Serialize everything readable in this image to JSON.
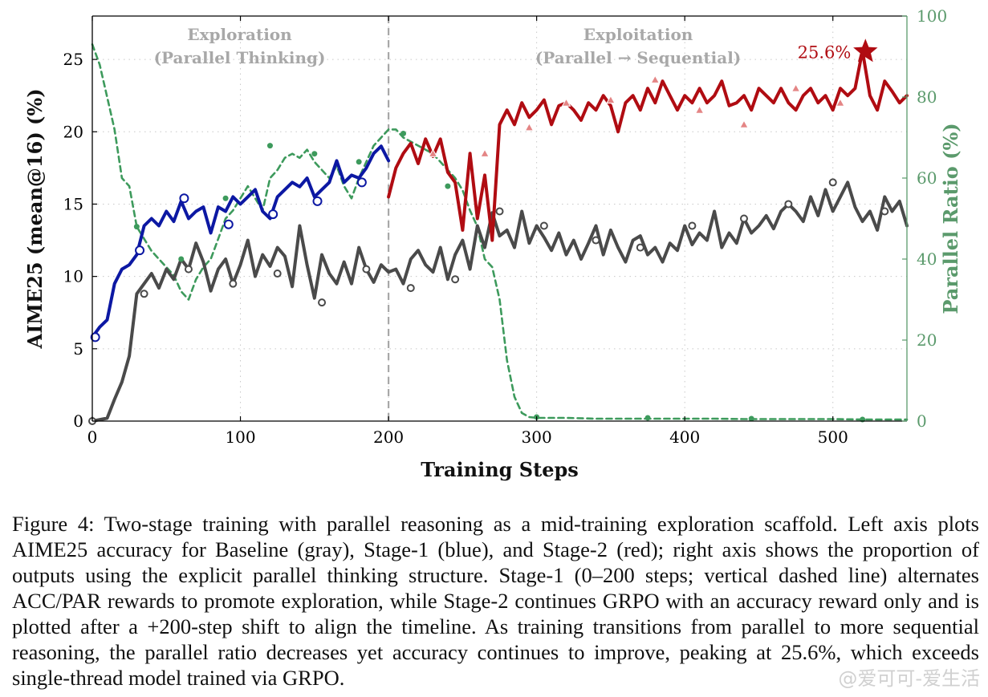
{
  "chart_data": {
    "type": "line",
    "xlabel": "Training Steps",
    "ylabel": "AIME25 (mean@16) (%)",
    "y2label": "Parallel Ratio (%)",
    "xlim": [
      0,
      550
    ],
    "ylim": [
      0,
      28
    ],
    "y2lim": [
      0,
      100
    ],
    "xticks": [
      0,
      100,
      200,
      300,
      400,
      500
    ],
    "yticks": [
      0,
      5,
      10,
      15,
      20,
      25
    ],
    "y2ticks": [
      0,
      20,
      40,
      60,
      80,
      100
    ],
    "grid": true,
    "divider_x": 200,
    "regions": [
      {
        "line1": "Exploration",
        "line2": "(Parallel Thinking)",
        "x": 100
      },
      {
        "line1": "Exploitation",
        "line2": "(Parallel → Sequential)",
        "x": 375
      }
    ],
    "peak": {
      "label": "25.6%",
      "x": 522,
      "y": 25.6
    },
    "colors": {
      "baseline": "#4a4a4a",
      "stage1": "#0c18a3",
      "stage2": "#b00c12",
      "ratio": "#3d9a5c",
      "axis2": "#5b9a6c"
    },
    "series": [
      {
        "key": "baseline",
        "axis": "left",
        "x": [
          0,
          5,
          10,
          15,
          20,
          25,
          30,
          35,
          40,
          45,
          50,
          55,
          60,
          65,
          70,
          75,
          80,
          85,
          90,
          95,
          100,
          105,
          110,
          115,
          120,
          125,
          130,
          135,
          140,
          145,
          150,
          155,
          160,
          165,
          170,
          175,
          180,
          185,
          190,
          195,
          200,
          205,
          210,
          215,
          220,
          225,
          230,
          235,
          240,
          245,
          250,
          255,
          260,
          265,
          270,
          275,
          280,
          285,
          290,
          295,
          300,
          305,
          310,
          315,
          320,
          325,
          330,
          335,
          340,
          345,
          350,
          355,
          360,
          365,
          370,
          375,
          380,
          385,
          390,
          395,
          400,
          405,
          410,
          415,
          420,
          425,
          430,
          435,
          440,
          445,
          450,
          455,
          460,
          465,
          470,
          475,
          480,
          485,
          490,
          495,
          500,
          505,
          510,
          515,
          520,
          525,
          530,
          535,
          540,
          545,
          550
        ],
        "y": [
          0,
          0.1,
          0.2,
          1.5,
          2.7,
          4.5,
          8.8,
          9.5,
          10.2,
          9.2,
          10.5,
          9.8,
          11.2,
          10.5,
          12.3,
          11.0,
          9.0,
          10.5,
          11.2,
          9.5,
          10.8,
          12.5,
          10.0,
          11.5,
          10.7,
          12.0,
          11.4,
          9.3,
          13.5,
          10.8,
          8.5,
          11.5,
          10.2,
          9.5,
          11.0,
          9.5,
          12.0,
          10.5,
          9.6,
          10.8,
          10.3,
          10.5,
          9.5,
          11.2,
          11.8,
          10.8,
          10.3,
          12.0,
          9.8,
          11.5,
          12.5,
          10.5,
          13.5,
          12.0,
          14.4,
          12.8,
          13.2,
          12.0,
          14.5,
          12.3,
          13.5,
          12.7,
          11.8,
          13.0,
          11.5,
          12.5,
          11.2,
          12.3,
          13.5,
          11.5,
          13.2,
          12.0,
          11.0,
          12.5,
          12.8,
          11.5,
          12.0,
          11.0,
          12.3,
          11.8,
          13.5,
          12.2,
          13.0,
          12.5,
          14.5,
          12.0,
          13.0,
          12.3,
          14.0,
          13.0,
          13.5,
          14.2,
          13.3,
          14.5,
          15.0,
          14.5,
          13.8,
          15.5,
          14.2,
          16.0,
          14.5,
          15.5,
          16.5,
          14.8,
          13.8,
          14.5,
          13.2,
          15.5,
          14.5,
          15.2,
          13.5
        ]
      },
      {
        "key": "stage1",
        "axis": "left",
        "x": [
          0,
          5,
          10,
          15,
          20,
          25,
          30,
          35,
          40,
          45,
          50,
          55,
          60,
          65,
          70,
          75,
          80,
          85,
          90,
          95,
          100,
          105,
          110,
          115,
          120,
          125,
          130,
          135,
          140,
          145,
          150,
          155,
          160,
          165,
          170,
          175,
          180,
          185,
          190,
          195,
          200
        ],
        "y": [
          5.8,
          6.5,
          7.0,
          9.5,
          10.5,
          10.8,
          11.5,
          13.5,
          14.0,
          13.5,
          14.5,
          13.8,
          15.2,
          14.0,
          14.5,
          14.8,
          13.0,
          14.8,
          14.5,
          15.5,
          15.0,
          15.5,
          16.0,
          14.5,
          14.0,
          15.5,
          16.0,
          16.5,
          16.2,
          16.8,
          15.5,
          16.0,
          16.5,
          18.0,
          16.5,
          17.0,
          16.8,
          17.5,
          18.5,
          19.0,
          18.0
        ]
      },
      {
        "key": "stage2",
        "axis": "left",
        "x": [
          200,
          205,
          210,
          215,
          220,
          225,
          230,
          235,
          240,
          245,
          250,
          255,
          260,
          265,
          270,
          275,
          280,
          285,
          290,
          295,
          300,
          305,
          310,
          315,
          320,
          325,
          330,
          335,
          340,
          345,
          350,
          355,
          360,
          365,
          370,
          375,
          380,
          385,
          390,
          395,
          400,
          405,
          410,
          415,
          420,
          425,
          430,
          435,
          440,
          445,
          450,
          455,
          460,
          465,
          470,
          475,
          480,
          485,
          490,
          495,
          500,
          505,
          510,
          515,
          520,
          525,
          530,
          535,
          540,
          545,
          550
        ],
        "y": [
          15.5,
          17.5,
          18.5,
          19.2,
          17.8,
          19.5,
          18.3,
          19.5,
          17.2,
          16.5,
          13.2,
          18.5,
          14.0,
          17.0,
          12.5,
          20.5,
          21.5,
          20.5,
          22.0,
          21.0,
          21.5,
          22.2,
          20.5,
          21.8,
          22.0,
          21.5,
          20.8,
          22.0,
          21.5,
          22.5,
          21.8,
          20.0,
          22.0,
          22.5,
          21.5,
          23.0,
          22.0,
          23.5,
          22.5,
          21.5,
          22.5,
          22.0,
          23.0,
          22.0,
          22.5,
          23.5,
          21.8,
          22.0,
          22.5,
          21.5,
          23.0,
          22.5,
          22.0,
          23.0,
          22.0,
          21.5,
          22.5,
          23.0,
          22.0,
          22.5,
          21.5,
          23.0,
          22.5,
          23.0,
          25.6,
          22.5,
          21.5,
          23.5,
          22.8,
          22.0,
          22.5
        ]
      },
      {
        "key": "ratio",
        "axis": "right",
        "x": [
          0,
          5,
          10,
          15,
          20,
          25,
          30,
          35,
          40,
          45,
          50,
          55,
          60,
          65,
          70,
          75,
          80,
          85,
          90,
          95,
          100,
          105,
          110,
          115,
          120,
          125,
          130,
          135,
          140,
          145,
          150,
          155,
          160,
          165,
          170,
          175,
          180,
          185,
          190,
          195,
          200,
          205,
          210,
          215,
          220,
          225,
          230,
          235,
          240,
          245,
          250,
          255,
          260,
          265,
          270,
          275,
          280,
          285,
          290,
          295,
          300,
          320,
          340,
          360,
          380,
          400,
          420,
          440,
          460,
          480,
          500,
          520,
          550
        ],
        "y": [
          93,
          88,
          80,
          72,
          60,
          58,
          48,
          45,
          42,
          40,
          38,
          36,
          32,
          30,
          35,
          38,
          40,
          45,
          50,
          52,
          55,
          58,
          55,
          52,
          60,
          62,
          65,
          66,
          65,
          67,
          64,
          62,
          60,
          63,
          58,
          55,
          60,
          64,
          68,
          70,
          72,
          72,
          70,
          69,
          68,
          67,
          66,
          64,
          62,
          60,
          57,
          52,
          48,
          40,
          38,
          30,
          15,
          6,
          2,
          1,
          0.8,
          0.8,
          0.6,
          0.6,
          0.6,
          0.6,
          0.6,
          0.5,
          0.5,
          0.5,
          0.5,
          0.4,
          0.4
        ]
      }
    ],
    "series_markers": [
      {
        "key": "baseline",
        "x": [
          0,
          35,
          65,
          95,
          125,
          155,
          185,
          215,
          245,
          275,
          305,
          340,
          370,
          405,
          440,
          470,
          500,
          535
        ],
        "y": [
          0,
          8.8,
          10.5,
          9.5,
          10.2,
          8.2,
          10.5,
          9.2,
          9.8,
          14.5,
          13.5,
          12.5,
          12.0,
          13.5,
          14.0,
          15.0,
          16.5,
          14.5
        ]
      },
      {
        "key": "stage1",
        "x": [
          2,
          32,
          62,
          92,
          122,
          152,
          182
        ],
        "y": [
          5.8,
          11.8,
          15.4,
          13.6,
          14.3,
          15.2,
          16.5
        ]
      },
      {
        "key": "stage2",
        "x": [
          230,
          265,
          295,
          320,
          350,
          380,
          410,
          440,
          475,
          505
        ],
        "y": [
          18.5,
          18.5,
          20.3,
          22.0,
          22.2,
          23.6,
          21.5,
          20.5,
          23.0,
          22.0
        ]
      },
      {
        "key": "ratio",
        "x": [
          30,
          60,
          90,
          120,
          150,
          180,
          210,
          240,
          300,
          375,
          445,
          520
        ],
        "y": [
          48,
          40,
          55,
          68,
          66,
          64,
          71,
          58,
          1,
          0.8,
          0.6,
          0.4
        ]
      }
    ]
  },
  "caption": "Figure 4: Two-stage training with parallel reasoning as a mid-training exploration scaffold. Left axis plots AIME25 accuracy for Baseline (gray), Stage-1 (blue), and Stage-2 (red); right axis shows the proportion of outputs using the explicit parallel thinking structure. Stage-1 (0–200 steps; vertical dashed line) alternates ACC/PAR rewards to promote exploration, while Stage-2 continues GRPO with an accuracy reward only and is plotted after a +200-step shift to align the timeline. As training transitions from parallel to more sequential reasoning, the parallel ratio decreases yet accuracy continues to improve, peaking at 25.6%, which exceeds single-thread model trained via GRPO.",
  "watermark": "@爱可可-爱生活"
}
